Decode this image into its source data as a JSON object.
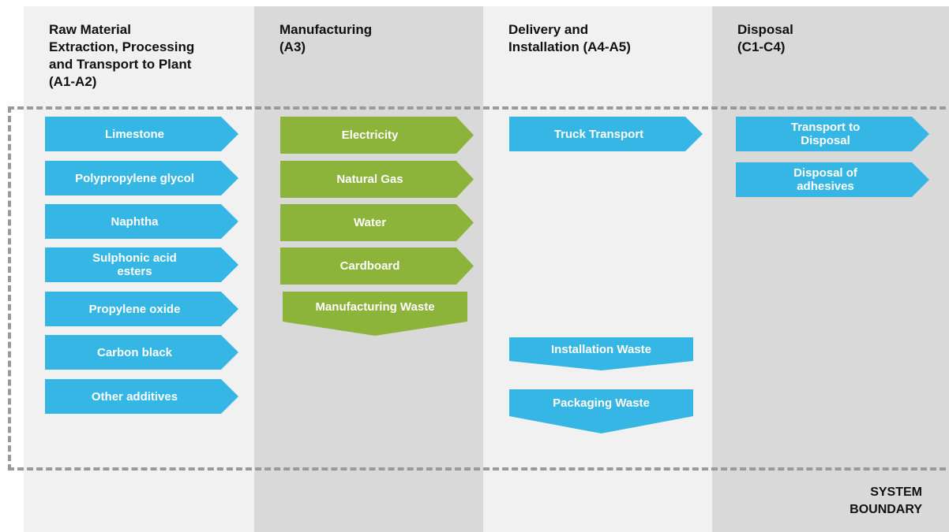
{
  "columns": [
    {
      "title": [
        "Raw Material",
        "Extraction, Processing",
        "and Transport to Plant",
        "(A1-A2)"
      ],
      "inputs": [
        "Limestone",
        "Polypropylene glycol",
        "Naphtha",
        "Sulphonic acid esters",
        "Propylene oxide",
        "Carbon black",
        "Other additives"
      ],
      "outputs": []
    },
    {
      "title": [
        "Manufacturing",
        "(A3)"
      ],
      "inputs": [
        "Electricity",
        "Natural Gas",
        "Water",
        "Cardboard"
      ],
      "outputs": [
        "Manufacturing Waste"
      ]
    },
    {
      "title": [
        "Delivery and",
        "Installation (A4-A5)"
      ],
      "inputs": [
        "Truck Transport"
      ],
      "outputs": [
        "Installation Waste",
        "Packaging Waste"
      ]
    },
    {
      "title": [
        "Disposal",
        "(C1-C4)"
      ],
      "inputs": [
        "Transport to Disposal",
        "Disposal of adhesives"
      ],
      "outputs": []
    }
  ],
  "boundary_label": [
    "SYSTEM",
    "BOUNDARY"
  ]
}
